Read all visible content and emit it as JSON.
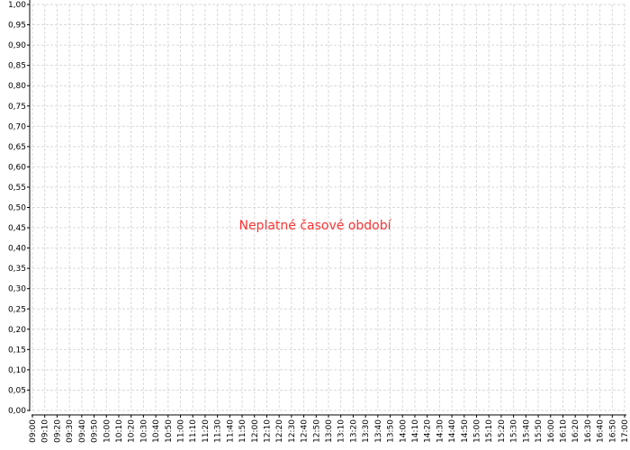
{
  "chart_data": {
    "type": "line",
    "title": "",
    "xlabel": "",
    "ylabel": "",
    "series": [],
    "message": "Neplatné časové období",
    "message_color": "#ff3333",
    "grid": true,
    "grid_color": "#d9d9d9",
    "xlim": [
      "09:00",
      "17:00"
    ],
    "ylim": [
      0,
      1
    ],
    "x_ticks": [
      "09:00",
      "09:10",
      "09:20",
      "09:30",
      "09:40",
      "09:50",
      "10:00",
      "10:10",
      "10:20",
      "10:30",
      "10:40",
      "10:50",
      "11:00",
      "11:10",
      "11:20",
      "11:30",
      "11:40",
      "11:50",
      "12:00",
      "12:10",
      "12:20",
      "12:30",
      "12:40",
      "12:50",
      "13:00",
      "13:10",
      "13:20",
      "13:30",
      "13:40",
      "13:50",
      "14:00",
      "14:10",
      "14:20",
      "14:30",
      "14:40",
      "14:50",
      "15:00",
      "15:10",
      "15:20",
      "15:30",
      "15:40",
      "15:50",
      "16:00",
      "16:10",
      "16:20",
      "16:30",
      "16:40",
      "16:50",
      "17:00"
    ],
    "y_ticks": [
      "0,00",
      "0,05",
      "0,10",
      "0,15",
      "0,20",
      "0,25",
      "0,30",
      "0,35",
      "0,40",
      "0,45",
      "0,50",
      "0,55",
      "0,60",
      "0,65",
      "0,70",
      "0,75",
      "0,80",
      "0,85",
      "0,90",
      "0,95",
      "1,00"
    ]
  }
}
